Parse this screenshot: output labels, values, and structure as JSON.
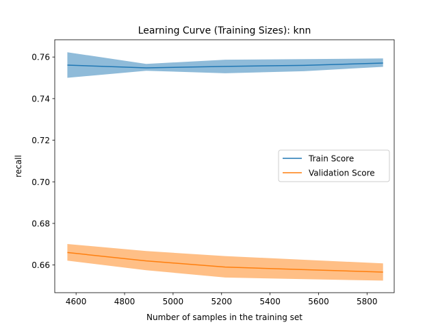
{
  "chart_data": {
    "type": "line",
    "title": "Learning Curve (Training Sizes): knn",
    "xlabel": "Number of samples in the training set",
    "ylabel": "recall",
    "xlim": [
      4512,
      5912
    ],
    "ylim": [
      0.6467,
      0.7683
    ],
    "xticks": [
      4600,
      4800,
      5000,
      5200,
      5400,
      5600,
      5800
    ],
    "yticks": [
      0.66,
      0.68,
      0.7,
      0.72,
      0.74,
      0.76
    ],
    "xtick_labels": [
      "4600",
      "4800",
      "5000",
      "5200",
      "5400",
      "5600",
      "5800"
    ],
    "ytick_labels": [
      "0.66",
      "0.68",
      "0.70",
      "0.72",
      "0.74",
      "0.76"
    ],
    "grid": false,
    "legend_position": "center-right",
    "series": [
      {
        "name": "Train Score",
        "color": "#1f77b4",
        "band_color": "#1f77b4",
        "x": [
          4564,
          4889,
          5215,
          5540,
          5866
        ],
        "y": [
          0.7561,
          0.7548,
          0.7555,
          0.756,
          0.7571
        ],
        "upper": [
          0.7623,
          0.7567,
          0.7587,
          0.759,
          0.7593
        ],
        "lower": [
          0.75,
          0.7534,
          0.7522,
          0.7532,
          0.7553
        ]
      },
      {
        "name": "Validation Score",
        "color": "#ff7f0e",
        "band_color": "#ff7f0e",
        "x": [
          4564,
          4889,
          5215,
          5540,
          5866
        ],
        "y": [
          0.666,
          0.662,
          0.659,
          0.6578,
          0.6566
        ],
        "upper": [
          0.6701,
          0.6667,
          0.6643,
          0.6625,
          0.6608
        ],
        "lower": [
          0.6621,
          0.6575,
          0.654,
          0.6532,
          0.6525
        ]
      }
    ]
  }
}
